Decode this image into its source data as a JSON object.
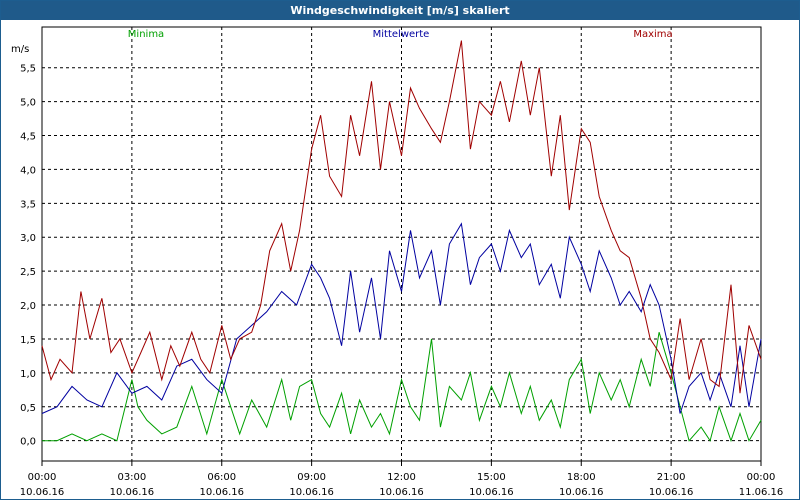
{
  "window": {
    "title": "Windgeschwindigkeit [m/s] skaliert"
  },
  "chart_data": {
    "type": "line",
    "title": "Windgeschwindigkeit [m/s] skaliert",
    "ylabel": "m/s",
    "xlabel": "",
    "ylim": [
      -0.3,
      6.1
    ],
    "xlim": [
      0,
      24
    ],
    "grid": true,
    "legend_position": "top",
    "yticks": [
      0,
      0.5,
      1.0,
      1.5,
      2.0,
      2.5,
      3.0,
      3.5,
      4.0,
      4.5,
      5.0,
      5.5
    ],
    "ytick_labels": [
      "0,0",
      "0,5",
      "1,0",
      "1,5",
      "2,0",
      "2,5",
      "3,0",
      "3,5",
      "4,0",
      "4,5",
      "5,0",
      "5,5"
    ],
    "xticks": [
      0,
      3,
      6,
      9,
      12,
      15,
      18,
      21,
      24
    ],
    "xtick_labels": [
      [
        "00:00",
        "10.06.16"
      ],
      [
        "03:00",
        "10.06.16"
      ],
      [
        "06:00",
        "10.06.16"
      ],
      [
        "09:00",
        "10.06.16"
      ],
      [
        "12:00",
        "10.06.16"
      ],
      [
        "15:00",
        "10.06.16"
      ],
      [
        "18:00",
        "10.06.16"
      ],
      [
        "21:00",
        "10.06.16"
      ],
      [
        "00:00",
        "11.06.16"
      ]
    ],
    "series": [
      {
        "name": "Minima",
        "color": "#00a000",
        "x": [
          0,
          0.5,
          1,
          1.5,
          2,
          2.5,
          3,
          3.2,
          3.5,
          4,
          4.5,
          5,
          5.5,
          6,
          6.3,
          6.6,
          7,
          7.5,
          8,
          8.3,
          8.6,
          9,
          9.3,
          9.6,
          10,
          10.3,
          10.6,
          11,
          11.3,
          11.6,
          12,
          12.3,
          12.6,
          13,
          13.3,
          13.6,
          14,
          14.3,
          14.6,
          15,
          15.3,
          15.6,
          16,
          16.3,
          16.6,
          17,
          17.3,
          17.6,
          18,
          18.3,
          18.6,
          19,
          19.3,
          19.6,
          20,
          20.3,
          20.6,
          21,
          21.3,
          21.6,
          22,
          22.3,
          22.6,
          23,
          23.3,
          23.6,
          24
        ],
        "y": [
          0,
          0,
          0.1,
          0,
          0.1,
          0,
          0.9,
          0.5,
          0.3,
          0.1,
          0.2,
          0.8,
          0.1,
          0.9,
          0.5,
          0.1,
          0.6,
          0.2,
          0.9,
          0.3,
          0.8,
          0.9,
          0.4,
          0.2,
          0.7,
          0.1,
          0.6,
          0.2,
          0.4,
          0.1,
          0.9,
          0.5,
          0.3,
          1.5,
          0.2,
          0.8,
          0.6,
          1.0,
          0.3,
          0.8,
          0.5,
          1.0,
          0.4,
          0.8,
          0.3,
          0.6,
          0.2,
          0.9,
          1.2,
          0.4,
          1.0,
          0.6,
          0.9,
          0.5,
          1.2,
          0.8,
          1.6,
          1.0,
          0.5,
          0.0,
          0.2,
          0.0,
          0.5,
          0.0,
          0.4,
          0.0,
          0.3
        ]
      },
      {
        "name": "Mittelwerte",
        "color": "#0000a0",
        "x": [
          0,
          0.5,
          1,
          1.5,
          2,
          2.5,
          3,
          3.5,
          4,
          4.5,
          5,
          5.5,
          6,
          6.5,
          7,
          7.5,
          8,
          8.5,
          9,
          9.3,
          9.6,
          10,
          10.3,
          10.6,
          11,
          11.3,
          11.6,
          12,
          12.3,
          12.6,
          13,
          13.3,
          13.6,
          14,
          14.3,
          14.6,
          15,
          15.3,
          15.6,
          16,
          16.3,
          16.6,
          17,
          17.3,
          17.6,
          18,
          18.3,
          18.6,
          19,
          19.3,
          19.6,
          20,
          20.3,
          20.6,
          21,
          21.3,
          21.6,
          22,
          22.3,
          22.6,
          23,
          23.3,
          23.6,
          24
        ],
        "y": [
          0.4,
          0.5,
          0.8,
          0.6,
          0.5,
          1.0,
          0.7,
          0.8,
          0.6,
          1.1,
          1.2,
          0.9,
          0.7,
          1.5,
          1.7,
          1.9,
          2.2,
          2.0,
          2.6,
          2.4,
          2.1,
          1.4,
          2.5,
          1.6,
          2.4,
          1.5,
          2.8,
          2.2,
          3.1,
          2.4,
          2.8,
          2.0,
          2.9,
          3.2,
          2.3,
          2.7,
          2.9,
          2.5,
          3.1,
          2.7,
          2.9,
          2.3,
          2.6,
          2.1,
          3.0,
          2.6,
          2.2,
          2.8,
          2.4,
          2.0,
          2.2,
          1.9,
          2.3,
          2.0,
          1.2,
          0.4,
          0.8,
          1.0,
          0.6,
          1.0,
          0.5,
          1.4,
          0.5,
          1.5
        ]
      },
      {
        "name": "Maxima",
        "color": "#a00000",
        "x": [
          0,
          0.3,
          0.6,
          1,
          1.3,
          1.6,
          2,
          2.3,
          2.6,
          3,
          3.3,
          3.6,
          4,
          4.3,
          4.6,
          5,
          5.3,
          5.6,
          6,
          6.3,
          6.6,
          7,
          7.3,
          7.6,
          8,
          8.3,
          8.6,
          9,
          9.3,
          9.6,
          10,
          10.3,
          10.6,
          11,
          11.3,
          11.6,
          12,
          12.3,
          12.6,
          13,
          13.3,
          13.6,
          14,
          14.3,
          14.6,
          15,
          15.3,
          15.6,
          16,
          16.3,
          16.6,
          17,
          17.3,
          17.6,
          18,
          18.3,
          18.6,
          19,
          19.3,
          19.6,
          20,
          20.3,
          20.6,
          21,
          21.3,
          21.6,
          22,
          22.3,
          22.6,
          23,
          23.3,
          23.6,
          24
        ],
        "y": [
          1.4,
          0.9,
          1.2,
          1.0,
          2.2,
          1.5,
          2.1,
          1.3,
          1.5,
          1.0,
          1.3,
          1.6,
          0.9,
          1.4,
          1.1,
          1.6,
          1.2,
          1.0,
          1.7,
          1.2,
          1.5,
          1.6,
          2.0,
          2.8,
          3.2,
          2.5,
          3.1,
          4.3,
          4.8,
          3.9,
          3.6,
          4.8,
          4.2,
          5.3,
          4.0,
          5.0,
          4.2,
          5.2,
          4.9,
          4.6,
          4.4,
          5.0,
          5.9,
          4.3,
          5.0,
          4.8,
          5.3,
          4.7,
          5.6,
          4.8,
          5.5,
          3.9,
          4.8,
          3.4,
          4.6,
          4.4,
          3.6,
          3.1,
          2.8,
          2.7,
          2.1,
          1.5,
          1.3,
          0.9,
          1.8,
          0.9,
          1.5,
          0.9,
          0.8,
          2.3,
          0.7,
          1.7,
          1.2
        ]
      }
    ]
  }
}
